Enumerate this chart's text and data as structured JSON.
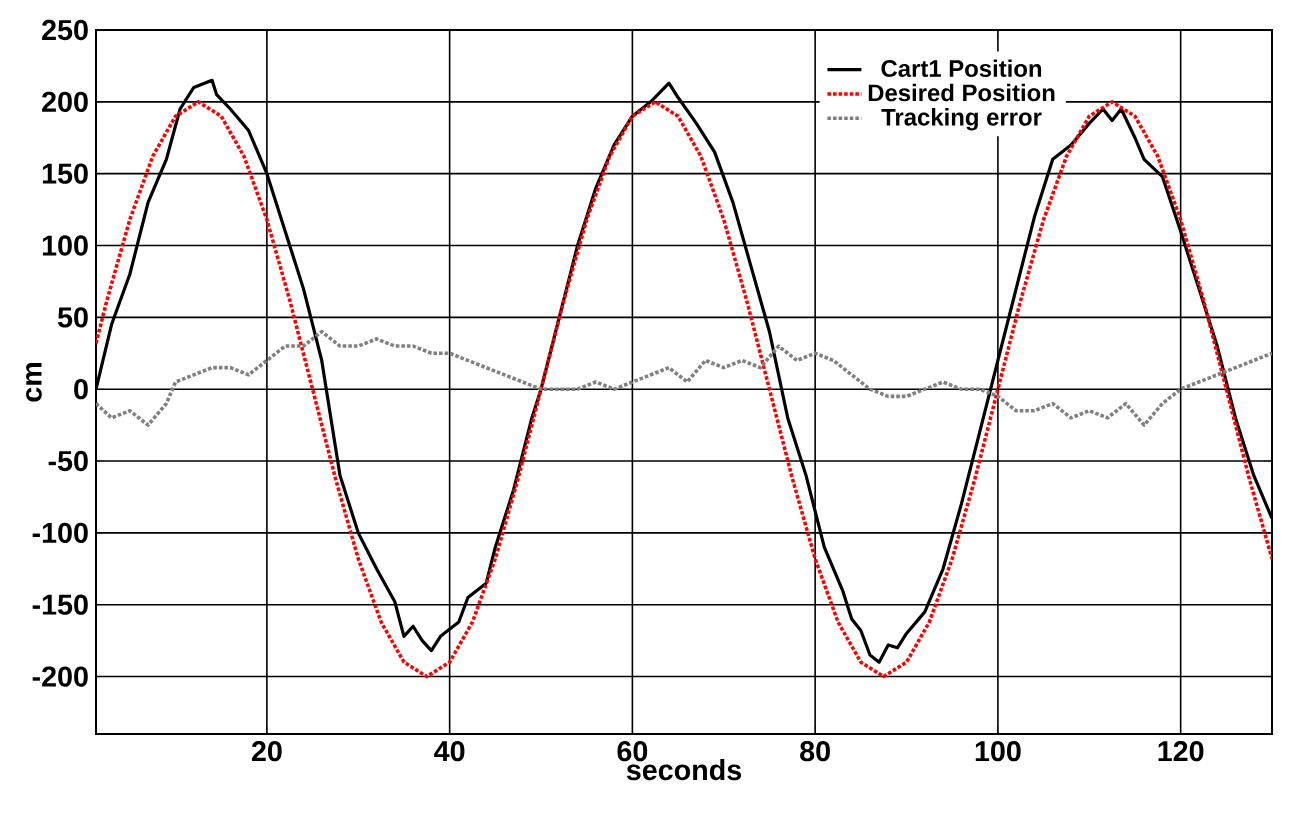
{
  "chart_data": {
    "type": "line",
    "xlabel": "seconds",
    "ylabel": "cm",
    "xlim": [
      1.3,
      130
    ],
    "ylim": [
      -240,
      250
    ],
    "xticks": [
      20,
      40,
      60,
      80,
      100,
      120
    ],
    "yticks": [
      -200,
      -150,
      -100,
      -50,
      0,
      50,
      100,
      150,
      200,
      250
    ],
    "grid": true,
    "legend": "top right",
    "marker": "none",
    "series": [
      {
        "name": "Cart1 Position",
        "color": "#000000",
        "line_style": "solid",
        "x": [
          1.3,
          3,
          5,
          7,
          9,
          10.5,
          12,
          14,
          14.5,
          16,
          18,
          20,
          22,
          24,
          26,
          27,
          28,
          30,
          32,
          34,
          35,
          36,
          37,
          38,
          39,
          41,
          42,
          44,
          45,
          47,
          49,
          50,
          52,
          54,
          56,
          58,
          60,
          62,
          64,
          65,
          67,
          69,
          71,
          73,
          75,
          77,
          79,
          81,
          83,
          84,
          85,
          86,
          87,
          88,
          89,
          90,
          92,
          94,
          96,
          98,
          100,
          102,
          104,
          106,
          108,
          110,
          111.5,
          112.5,
          113.5,
          115,
          116,
          118,
          120,
          122,
          124,
          126,
          128,
          130
        ],
        "values": [
          0,
          45,
          80,
          130,
          160,
          195,
          210,
          215,
          205,
          195,
          180,
          150,
          110,
          70,
          20,
          -20,
          -60,
          -100,
          -125,
          -148,
          -172,
          -165,
          -175,
          -182,
          -172,
          -162,
          -145,
          -135,
          -110,
          -70,
          -20,
          0,
          50,
          100,
          140,
          170,
          190,
          200,
          213,
          203,
          185,
          165,
          130,
          85,
          40,
          -20,
          -60,
          -110,
          -140,
          -160,
          -168,
          -185,
          -190,
          -178,
          -180,
          -170,
          -155,
          -125,
          -80,
          -30,
          20,
          70,
          120,
          160,
          170,
          185,
          195,
          187,
          195,
          175,
          160,
          148,
          110,
          70,
          30,
          -20,
          -60,
          -90
        ]
      },
      {
        "name": "Desired Position",
        "color": "#ff0000",
        "line_style": "dotted",
        "x": [
          1.3,
          2.5,
          5,
          7.5,
          10,
          12.5,
          15,
          17.5,
          20,
          22.5,
          25,
          27.5,
          30,
          32.5,
          35,
          37.5,
          40,
          42.5,
          45,
          47.5,
          50,
          52.5,
          55,
          57.5,
          60,
          62.5,
          65,
          67.5,
          70,
          72.5,
          75,
          77.5,
          80,
          82.5,
          85,
          87.5,
          90,
          92.5,
          95,
          97.5,
          100,
          102.5,
          105,
          107.5,
          110,
          112.5,
          115,
          117.5,
          120,
          122.5,
          125,
          127.5,
          130
        ],
        "values": [
          32,
          62,
          118,
          162,
          190,
          200,
          190,
          162,
          118,
          62,
          0,
          -62,
          -118,
          -162,
          -190,
          -200,
          -190,
          -162,
          -118,
          -62,
          0,
          62,
          118,
          162,
          190,
          200,
          190,
          162,
          118,
          62,
          0,
          -62,
          -118,
          -162,
          -190,
          -200,
          -190,
          -162,
          -118,
          -62,
          0,
          62,
          118,
          162,
          190,
          200,
          190,
          162,
          118,
          62,
          0,
          -62,
          -118
        ]
      },
      {
        "name": "Tracking error",
        "color": "#808080",
        "line_style": "dotted",
        "x": [
          1.3,
          3,
          5,
          7,
          9,
          10,
          12,
          14,
          16,
          18,
          20,
          22,
          24,
          26,
          28,
          30,
          32,
          34,
          36,
          38,
          40,
          42,
          44,
          46,
          48,
          50,
          52,
          54,
          56,
          58,
          60,
          62,
          64,
          66,
          68,
          70,
          72,
          74,
          76,
          78,
          80,
          82,
          84,
          86,
          88,
          90,
          92,
          94,
          96,
          98,
          100,
          102,
          104,
          106,
          108,
          110,
          112,
          114,
          116,
          118,
          120,
          122,
          124,
          126,
          128,
          130
        ],
        "values": [
          -10,
          -20,
          -15,
          -25,
          -10,
          5,
          10,
          15,
          15,
          10,
          20,
          30,
          30,
          40,
          30,
          30,
          35,
          30,
          30,
          25,
          25,
          20,
          15,
          10,
          5,
          0,
          0,
          0,
          5,
          0,
          5,
          10,
          15,
          5,
          20,
          15,
          20,
          15,
          30,
          20,
          25,
          20,
          10,
          0,
          -5,
          -5,
          0,
          5,
          0,
          0,
          -5,
          -15,
          -15,
          -10,
          -20,
          -15,
          -20,
          -10,
          -25,
          -10,
          0,
          5,
          10,
          15,
          20,
          25
        ]
      }
    ]
  }
}
